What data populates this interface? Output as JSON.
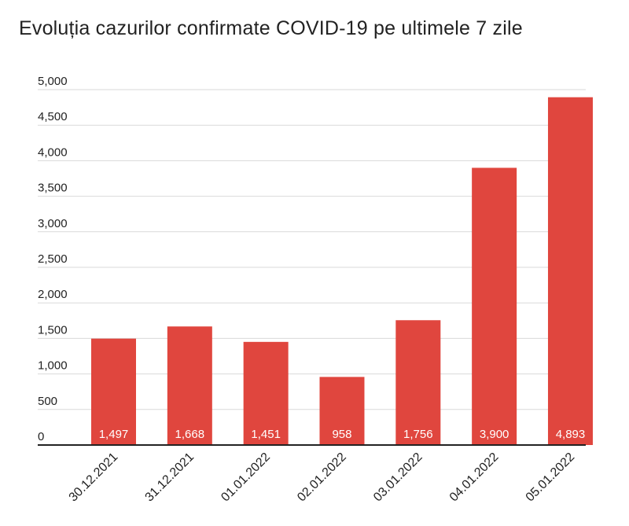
{
  "chart_data": {
    "type": "bar",
    "title": "Evoluția cazurilor confirmate COVID-19 pe ultimele 7 zile",
    "categories": [
      "30.12.2021",
      "31.12.2021",
      "01.01.2022",
      "02.01.2022",
      "03.01.2022",
      "04.01.2022",
      "05.01.2022"
    ],
    "values": [
      1497,
      1668,
      1451,
      958,
      1756,
      3900,
      4893
    ],
    "data_labels": [
      "1,497",
      "1,668",
      "1,451",
      "958",
      "1,756",
      "3,900",
      "4,893"
    ],
    "yticks": [
      0,
      500,
      1000,
      1500,
      2000,
      2500,
      3000,
      3500,
      4000,
      4500,
      5000
    ],
    "ytick_labels": [
      "0",
      "500",
      "1,000",
      "1,500",
      "2,000",
      "2,500",
      "3,000",
      "3,500",
      "4,000",
      "4,500",
      "5,000"
    ],
    "ylim": [
      0,
      5000
    ],
    "grid": true,
    "legend": "none",
    "bar_color": "#e0463e",
    "grid_color": "#d9d9d9",
    "axis_color": "#222222"
  }
}
